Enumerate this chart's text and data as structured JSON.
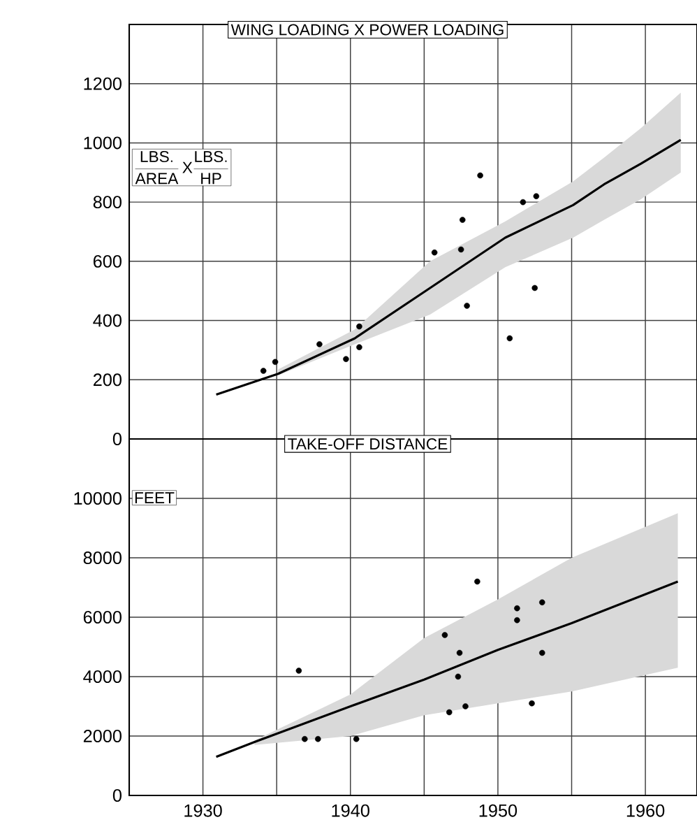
{
  "chart_data": [
    {
      "type": "scatter",
      "title": "WING LOADING X POWER LOADING",
      "ylabel": "\\frac{\\mathrm{LBS.}}{\\mathrm{AREA}}\\,\\mathrm{X}\\frac{\\mathrm{LBS.}}{\\mathrm{HP}}",
      "xlim": [
        1925,
        1963.5
      ],
      "ylim": [
        0,
        1400
      ],
      "xticks": [
        1930,
        {
          "value": 1935,
          "label": null
        },
        1940,
        {
          "value": 1945,
          "label": null
        },
        1950,
        {
          "value": 1955,
          "label": null
        },
        1960
      ],
      "yticks": [
        0,
        200,
        400,
        600,
        800,
        1000,
        1200
      ],
      "grid": true,
      "marker": "circle",
      "tick_labels": "y",
      "series": [
        {
          "color": "#000000",
          "x": [
            1948.8,
            1951.7,
            1952.6,
            1947.6,
            1945.7,
            1947.5,
            1952.5,
            1947.9,
            1950.8,
            1940.6,
            1940.6,
            1939.7,
            1937.9,
            1934.9,
            1934.1
          ],
          "values": [
            890,
            800,
            820,
            740,
            630,
            640,
            510,
            450,
            340,
            380,
            310,
            270,
            320,
            260,
            230
          ]
        },
        {
          "type": "line",
          "color": "#000000",
          "marker": "none",
          "x": [
            1930.9,
            1935.1,
            1940.3,
            1945.4,
            1950.5,
            1955.1,
            1957.2,
            1959.7,
            1962.4
          ],
          "values": [
            150,
            220,
            340,
            510,
            680,
            790,
            860,
            930,
            1010
          ],
          "lower": [
            null,
            215,
            320,
            420,
            580,
            680,
            740,
            810,
            900
          ],
          "upper": [
            null,
            235,
            370,
            600,
            735,
            870,
            950,
            1050,
            1170
          ]
        }
      ]
    },
    {
      "type": "scatter",
      "title": "TAKE-OFF DISTANCE",
      "ylabel": "FEET",
      "xlim": [
        1925,
        1963.5
      ],
      "ylim": [
        0,
        12000
      ],
      "xticks": [
        1930,
        {
          "value": 1935,
          "label": null
        },
        1940,
        {
          "value": 1945,
          "label": null
        },
        1950,
        {
          "value": 1955,
          "label": null
        },
        1960
      ],
      "yticks": [
        0,
        2000,
        4000,
        6000,
        8000,
        10000
      ],
      "grid": true,
      "marker": "circle",
      "series": [
        {
          "color": "#000000",
          "x": [
            1936.5,
            1948.6,
            1953.0,
            1951.3,
            1951.3,
            1946.4,
            1947.4,
            1953.0,
            1947.3,
            1947.8,
            1946.7,
            1952.3,
            1936.9,
            1937.8,
            1940.4
          ],
          "values": [
            4200,
            7200,
            6500,
            6300,
            5900,
            5400,
            4800,
            4800,
            4000,
            3000,
            2800,
            3100,
            1900,
            1900,
            1900
          ]
        },
        {
          "type": "line",
          "color": "#000000",
          "marker": "none",
          "x": [
            1930.9,
            1933.5,
            1940,
            1945,
            1950,
            1955,
            1962.2
          ],
          "values": [
            1300,
            1800,
            3000,
            3900,
            4900,
            5800,
            7200
          ],
          "lower": [
            null,
            1700,
            2000,
            2700,
            3100,
            3500,
            4300
          ],
          "upper": [
            null,
            1850,
            3400,
            5300,
            6600,
            8000,
            9500
          ]
        }
      ]
    }
  ]
}
